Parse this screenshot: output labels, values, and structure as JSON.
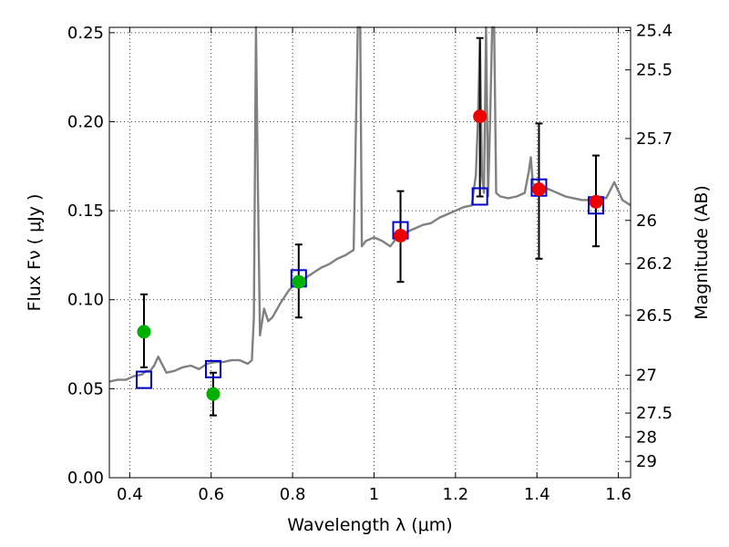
{
  "chart_data": {
    "type": "scatter",
    "xlabel": "Wavelength  λ (μm)",
    "ylabel": "Flux  Fν  ( μJy )",
    "y2label": "Magnitude (AB)",
    "xlim": [
      0.35,
      1.63
    ],
    "ylim": [
      0.0,
      0.253
    ],
    "grid": true,
    "x_ticks": [
      0.4,
      0.6,
      0.8,
      1.0,
      1.2,
      1.4,
      1.6
    ],
    "x_tick_labels": [
      "0.4",
      "0.6",
      "0.8",
      "1",
      "1.2",
      "1.4",
      "1.6"
    ],
    "y_ticks": [
      0.0,
      0.05,
      0.1,
      0.15,
      0.2,
      0.25
    ],
    "y_tick_labels": [
      "0.00",
      "0.05",
      "0.10",
      "0.15",
      "0.20",
      "0.25"
    ],
    "mag_ticks": [
      25.4,
      25.5,
      25.7,
      26,
      26.2,
      26.5,
      27,
      27.5,
      28,
      29
    ],
    "mag_tick_labels": [
      "25.4",
      "25.5",
      "25.7",
      "26",
      "26.2",
      "26.5",
      "27",
      "27.5",
      "28",
      "29"
    ],
    "colors": {
      "spectrum": "#808080",
      "model_box": "#0000cc",
      "obs_green": "#00b000",
      "obs_red": "#ee0000",
      "errorbar": "#000000"
    },
    "spectrum": {
      "x": [
        0.35,
        0.37,
        0.39,
        0.41,
        0.43,
        0.44,
        0.45,
        0.46,
        0.47,
        0.49,
        0.51,
        0.53,
        0.55,
        0.57,
        0.59,
        0.61,
        0.63,
        0.65,
        0.67,
        0.69,
        0.7,
        0.705,
        0.71,
        0.715,
        0.72,
        0.73,
        0.74,
        0.75,
        0.77,
        0.79,
        0.81,
        0.83,
        0.85,
        0.87,
        0.89,
        0.91,
        0.93,
        0.95,
        0.96,
        0.963,
        0.966,
        0.97,
        0.98,
        1.0,
        1.02,
        1.04,
        1.06,
        1.08,
        1.1,
        1.12,
        1.14,
        1.16,
        1.18,
        1.2,
        1.22,
        1.24,
        1.25,
        1.255,
        1.26,
        1.265,
        1.27,
        1.275,
        1.28,
        1.285,
        1.29,
        1.295,
        1.3,
        1.31,
        1.33,
        1.35,
        1.37,
        1.38,
        1.385,
        1.39,
        1.41,
        1.43,
        1.45,
        1.47,
        1.49,
        1.51,
        1.53,
        1.55,
        1.57,
        1.59,
        1.61,
        1.63
      ],
      "y": [
        0.054,
        0.055,
        0.055,
        0.057,
        0.058,
        0.06,
        0.06,
        0.063,
        0.068,
        0.059,
        0.06,
        0.062,
        0.063,
        0.061,
        0.064,
        0.065,
        0.065,
        0.066,
        0.066,
        0.064,
        0.066,
        0.09,
        0.253,
        0.16,
        0.08,
        0.095,
        0.088,
        0.09,
        0.098,
        0.105,
        0.11,
        0.112,
        0.115,
        0.118,
        0.12,
        0.123,
        0.125,
        0.128,
        0.253,
        0.253,
        0.253,
        0.13,
        0.133,
        0.135,
        0.133,
        0.13,
        0.136,
        0.138,
        0.14,
        0.142,
        0.143,
        0.146,
        0.148,
        0.15,
        0.152,
        0.153,
        0.17,
        0.2,
        0.245,
        0.17,
        0.16,
        0.253,
        0.158,
        0.2,
        0.253,
        0.253,
        0.16,
        0.158,
        0.157,
        0.158,
        0.16,
        0.172,
        0.18,
        0.165,
        0.163,
        0.162,
        0.16,
        0.158,
        0.157,
        0.156,
        0.156,
        0.158,
        0.157,
        0.166,
        0.156,
        0.153
      ]
    },
    "model_points": {
      "x": [
        0.435,
        0.605,
        0.815,
        1.065,
        1.26,
        1.405,
        1.545
      ],
      "y": [
        0.055,
        0.061,
        0.112,
        0.139,
        0.158,
        0.163,
        0.153
      ]
    },
    "observed": [
      {
        "x": 0.435,
        "y": 0.082,
        "yerr_lo": 0.062,
        "yerr_hi": 0.103,
        "color": "green"
      },
      {
        "x": 0.605,
        "y": 0.047,
        "yerr_lo": 0.035,
        "yerr_hi": 0.059,
        "color": "green"
      },
      {
        "x": 0.815,
        "y": 0.11,
        "yerr_lo": 0.09,
        "yerr_hi": 0.131,
        "color": "green"
      },
      {
        "x": 1.065,
        "y": 0.136,
        "yerr_lo": 0.11,
        "yerr_hi": 0.161,
        "color": "red"
      },
      {
        "x": 1.26,
        "y": 0.203,
        "yerr_lo": 0.158,
        "yerr_hi": 0.247,
        "color": "red"
      },
      {
        "x": 1.405,
        "y": 0.162,
        "yerr_lo": 0.123,
        "yerr_hi": 0.199,
        "color": "red"
      },
      {
        "x": 1.545,
        "y": 0.155,
        "yerr_lo": 0.13,
        "yerr_hi": 0.181,
        "color": "red"
      }
    ]
  }
}
